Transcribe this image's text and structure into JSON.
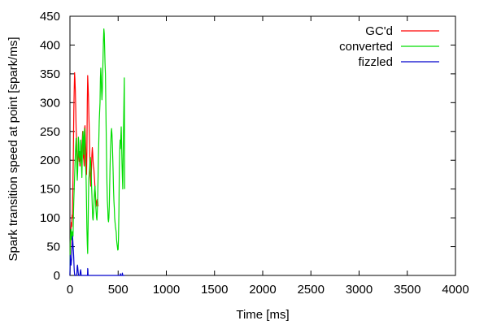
{
  "chart_data": {
    "type": "line",
    "xlabel": "Time [ms]",
    "ylabel": "Spark transition speed at point [spark/ms]",
    "xlim": [
      0,
      4000
    ],
    "ylim": [
      0,
      450
    ],
    "x_ticks": [
      0,
      500,
      1000,
      1500,
      2000,
      2500,
      3000,
      3500,
      4000
    ],
    "y_ticks": [
      0,
      50,
      100,
      150,
      200,
      250,
      300,
      350,
      400,
      450
    ],
    "grid": false,
    "legend_position": "top-right",
    "series": [
      {
        "name": "GC'd",
        "color": "#ff0000",
        "points": [
          [
            0,
            0
          ],
          [
            5,
            45
          ],
          [
            10,
            78
          ],
          [
            14,
            92
          ],
          [
            18,
            85
          ],
          [
            22,
            105
          ],
          [
            25,
            100
          ],
          [
            30,
            150
          ],
          [
            35,
            205
          ],
          [
            40,
            285
          ],
          [
            44,
            320
          ],
          [
            48,
            352
          ],
          [
            52,
            340
          ],
          [
            56,
            320
          ],
          [
            60,
            290
          ],
          [
            64,
            255
          ],
          [
            68,
            240
          ],
          [
            72,
            205
          ],
          [
            76,
            180
          ],
          [
            80,
            190
          ],
          [
            84,
            215
          ],
          [
            88,
            228
          ],
          [
            92,
            210
          ],
          [
            96,
            198
          ],
          [
            100,
            200
          ],
          [
            104,
            190
          ],
          [
            108,
            200
          ],
          [
            112,
            210
          ],
          [
            116,
            205
          ],
          [
            120,
            195
          ],
          [
            124,
            205
          ],
          [
            128,
            235
          ],
          [
            132,
            250
          ],
          [
            136,
            235
          ],
          [
            140,
            205
          ],
          [
            144,
            200
          ],
          [
            148,
            190
          ],
          [
            152,
            255
          ],
          [
            156,
            260
          ],
          [
            160,
            240
          ],
          [
            164,
            220
          ],
          [
            168,
            195
          ],
          [
            172,
            175
          ],
          [
            176,
            215
          ],
          [
            180,
            300
          ],
          [
            184,
            347
          ],
          [
            188,
            330
          ],
          [
            192,
            310
          ],
          [
            196,
            280
          ],
          [
            200,
            255
          ],
          [
            204,
            225
          ],
          [
            208,
            185
          ],
          [
            212,
            170
          ],
          [
            216,
            155
          ],
          [
            220,
            165
          ],
          [
            224,
            190
          ],
          [
            228,
            210
          ],
          [
            232,
            222
          ],
          [
            236,
            212
          ],
          [
            240,
            198
          ],
          [
            244,
            190
          ],
          [
            248,
            185
          ],
          [
            252,
            175
          ],
          [
            256,
            165
          ],
          [
            260,
            150
          ],
          [
            264,
            140
          ],
          [
            268,
            130
          ],
          [
            272,
            120
          ],
          [
            276,
            125
          ],
          [
            280,
            130
          ],
          [
            284,
            132
          ],
          [
            288,
            128
          ],
          [
            292,
            120
          ]
        ]
      },
      {
        "name": "converted",
        "color": "#00dd00",
        "points": [
          [
            0,
            0
          ],
          [
            3,
            55
          ],
          [
            6,
            70
          ],
          [
            9,
            78
          ],
          [
            12,
            80
          ],
          [
            16,
            62
          ],
          [
            20,
            68
          ],
          [
            24,
            76
          ],
          [
            28,
            72
          ],
          [
            32,
            68
          ],
          [
            36,
            105
          ],
          [
            40,
            130
          ],
          [
            44,
            150
          ],
          [
            48,
            170
          ],
          [
            52,
            190
          ],
          [
            56,
            210
          ],
          [
            60,
            225
          ],
          [
            64,
            238
          ],
          [
            68,
            215
          ],
          [
            72,
            185
          ],
          [
            76,
            165
          ],
          [
            80,
            180
          ],
          [
            84,
            210
          ],
          [
            88,
            240
          ],
          [
            92,
            230
          ],
          [
            96,
            205
          ],
          [
            100,
            215
          ],
          [
            104,
            195
          ],
          [
            108,
            210
          ],
          [
            112,
            235
          ],
          [
            116,
            225
          ],
          [
            120,
            190
          ],
          [
            124,
            170
          ],
          [
            128,
            205
          ],
          [
            132,
            240
          ],
          [
            136,
            250
          ],
          [
            140,
            230
          ],
          [
            144,
            210
          ],
          [
            148,
            240
          ],
          [
            152,
            255
          ],
          [
            156,
            238
          ],
          [
            160,
            200
          ],
          [
            164,
            185
          ],
          [
            168,
            165
          ],
          [
            172,
            125
          ],
          [
            176,
            80
          ],
          [
            180,
            55
          ],
          [
            184,
            38
          ],
          [
            188,
            82
          ],
          [
            192,
            135
          ],
          [
            196,
            168
          ],
          [
            200,
            175
          ],
          [
            204,
            185
          ],
          [
            208,
            198
          ],
          [
            212,
            205
          ],
          [
            216,
            192
          ],
          [
            220,
            180
          ],
          [
            224,
            158
          ],
          [
            228,
            140
          ],
          [
            232,
            118
          ],
          [
            236,
            100
          ],
          [
            240,
            96
          ],
          [
            244,
            108
          ],
          [
            248,
            120
          ],
          [
            252,
            135
          ],
          [
            256,
            148
          ],
          [
            260,
            155
          ],
          [
            264,
            138
          ],
          [
            268,
            120
          ],
          [
            272,
            110
          ],
          [
            276,
            100
          ],
          [
            280,
            96
          ],
          [
            284,
            112
          ],
          [
            288,
            135
          ],
          [
            292,
            172
          ],
          [
            296,
            210
          ],
          [
            300,
            238
          ],
          [
            304,
            268
          ],
          [
            308,
            285
          ],
          [
            312,
            300
          ],
          [
            316,
            342
          ],
          [
            320,
            360
          ],
          [
            324,
            345
          ],
          [
            328,
            320
          ],
          [
            332,
            305
          ],
          [
            336,
            322
          ],
          [
            340,
            350
          ],
          [
            344,
            382
          ],
          [
            348,
            410
          ],
          [
            352,
            428
          ],
          [
            356,
            420
          ],
          [
            360,
            395
          ],
          [
            364,
            368
          ],
          [
            368,
            350
          ],
          [
            372,
            300
          ],
          [
            376,
            250
          ],
          [
            380,
            205
          ],
          [
            384,
            160
          ],
          [
            388,
            130
          ],
          [
            392,
            118
          ],
          [
            396,
            98
          ],
          [
            400,
            93
          ],
          [
            404,
            100
          ],
          [
            408,
            120
          ],
          [
            412,
            155
          ],
          [
            416,
            188
          ],
          [
            420,
            215
          ],
          [
            424,
            230
          ],
          [
            428,
            248
          ],
          [
            432,
            255
          ],
          [
            436,
            245
          ],
          [
            440,
            228
          ],
          [
            444,
            205
          ],
          [
            448,
            180
          ],
          [
            452,
            150
          ],
          [
            456,
            130
          ],
          [
            460,
            118
          ],
          [
            464,
            100
          ],
          [
            468,
            92
          ],
          [
            472,
            85
          ],
          [
            476,
            80
          ],
          [
            480,
            75
          ],
          [
            484,
            62
          ],
          [
            488,
            55
          ],
          [
            492,
            50
          ],
          [
            496,
            44
          ],
          [
            500,
            45
          ],
          [
            504,
            68
          ],
          [
            508,
            110
          ],
          [
            512,
            180
          ],
          [
            516,
            215
          ],
          [
            520,
            235
          ],
          [
            524,
            220
          ],
          [
            528,
            240
          ],
          [
            532,
            258
          ],
          [
            536,
            230
          ],
          [
            540,
            195
          ],
          [
            544,
            170
          ],
          [
            548,
            150
          ],
          [
            552,
            205
          ],
          [
            556,
            255
          ],
          [
            560,
            300
          ],
          [
            564,
            343
          ],
          [
            568,
            150
          ]
        ]
      },
      {
        "name": "fizzled",
        "color": "#0000cc",
        "points": [
          [
            0,
            0
          ],
          [
            3,
            35
          ],
          [
            6,
            28
          ],
          [
            9,
            22
          ],
          [
            12,
            18
          ],
          [
            15,
            25
          ],
          [
            18,
            30
          ],
          [
            21,
            45
          ],
          [
            24,
            55
          ],
          [
            27,
            68
          ],
          [
            30,
            60
          ],
          [
            33,
            50
          ],
          [
            36,
            42
          ],
          [
            39,
            32
          ],
          [
            42,
            18
          ],
          [
            45,
            8
          ],
          [
            48,
            2
          ],
          [
            51,
            0
          ],
          [
            54,
            0
          ],
          [
            57,
            0
          ],
          [
            60,
            0
          ],
          [
            66,
            0
          ],
          [
            72,
            4
          ],
          [
            75,
            15
          ],
          [
            78,
            18
          ],
          [
            81,
            14
          ],
          [
            84,
            8
          ],
          [
            87,
            2
          ],
          [
            90,
            0
          ],
          [
            96,
            0
          ],
          [
            102,
            0
          ],
          [
            108,
            7
          ],
          [
            111,
            10
          ],
          [
            114,
            6
          ],
          [
            117,
            0
          ],
          [
            126,
            0
          ],
          [
            132,
            0
          ],
          [
            150,
            0
          ],
          [
            170,
            0
          ],
          [
            182,
            0
          ],
          [
            184,
            12
          ],
          [
            186,
            10
          ],
          [
            188,
            0
          ],
          [
            200,
            0
          ],
          [
            240,
            0
          ],
          [
            300,
            0
          ],
          [
            350,
            0
          ],
          [
            400,
            0
          ],
          [
            450,
            0
          ],
          [
            500,
            0
          ],
          [
            520,
            0
          ],
          [
            524,
            3
          ],
          [
            528,
            0
          ],
          [
            540,
            0
          ],
          [
            544,
            4
          ],
          [
            548,
            0
          ],
          [
            568,
            0
          ]
        ]
      }
    ]
  }
}
